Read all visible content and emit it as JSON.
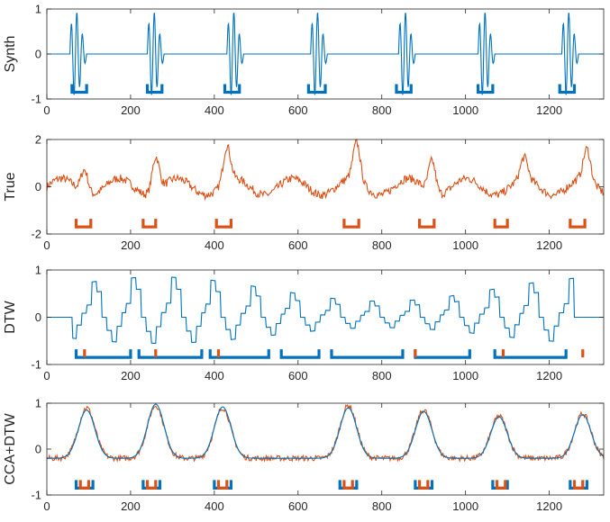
{
  "colors": {
    "blue": "#0072BD",
    "orange": "#D95319",
    "axis": "#262626"
  },
  "chart_data": [
    {
      "type": "line",
      "ylabel": "Synth",
      "xlim": [
        0,
        1330
      ],
      "ylim": [
        -1,
        1
      ],
      "xticks": [
        0,
        200,
        400,
        600,
        800,
        1000,
        1200
      ],
      "yticks": [
        -1,
        0,
        1
      ],
      "grid": false,
      "series": [
        {
          "color": "#0072BD",
          "kind": "synth_bursts",
          "bursts": [
            [
              55,
              95
            ],
            [
              240,
              280
            ],
            [
              430,
              470
            ],
            [
              630,
              670
            ],
            [
              840,
              880
            ],
            [
              1030,
              1070
            ],
            [
              1230,
              1270
            ]
          ]
        }
      ],
      "segments": [
        {
          "color": "#0072BD",
          "y": -0.85,
          "spans": [
            [
              60,
              95
            ],
            [
              240,
              275
            ],
            [
              425,
              460
            ],
            [
              625,
              665
            ],
            [
              835,
              870
            ],
            [
              1030,
              1065
            ],
            [
              1225,
              1260
            ]
          ]
        }
      ]
    },
    {
      "type": "line",
      "ylabel": "True",
      "xlim": [
        0,
        1330
      ],
      "ylim": [
        -2,
        2
      ],
      "xticks": [
        0,
        200,
        400,
        600,
        800,
        1000,
        1200
      ],
      "yticks": [
        -2,
        0,
        2
      ],
      "grid": false,
      "series": [
        {
          "color": "#D95319",
          "kind": "noisy_oscillation",
          "peaks": [
            [
              90,
              1.0
            ],
            [
              260,
              1.5
            ],
            [
              430,
              1.5
            ],
            [
              740,
              1.6
            ],
            [
              920,
              1.4
            ],
            [
              1140,
              0.9
            ],
            [
              1290,
              1.3
            ]
          ]
        }
      ],
      "segments": [
        {
          "color": "#D95319",
          "y": -1.7,
          "spans": [
            [
              70,
              105
            ],
            [
              230,
              260
            ],
            [
              405,
              440
            ],
            [
              710,
              745
            ],
            [
              890,
              925
            ],
            [
              1070,
              1100
            ],
            [
              1250,
              1285
            ]
          ]
        }
      ]
    },
    {
      "type": "line",
      "ylabel": "DTW",
      "xlim": [
        0,
        1330
      ],
      "ylim": [
        -1,
        1
      ],
      "xticks": [
        0,
        200,
        400,
        600,
        800,
        1000,
        1200
      ],
      "yticks": [
        -1,
        0,
        1
      ],
      "grid": false,
      "series": [
        {
          "color": "#0072BD",
          "kind": "warped_steps",
          "active": [
            [
              60,
              1260
            ]
          ]
        }
      ],
      "segments": [
        {
          "color": "#0072BD",
          "y": -0.85,
          "spans": [
            [
              70,
              200
            ],
            [
              220,
              370
            ],
            [
              390,
              530
            ],
            [
              560,
              650
            ],
            [
              680,
              850
            ],
            [
              880,
              1010
            ],
            [
              1070,
              1240
            ]
          ],
          "end_ticks": [
            1070,
            1110,
            1240,
            1260
          ]
        },
        {
          "color": "#D95319",
          "y": -0.85,
          "spans": [
            [
              90,
              90
            ],
            [
              260,
              260
            ],
            [
              410,
              410
            ],
            [
              880,
              880
            ],
            [
              1090,
              1090
            ],
            [
              1280,
              1280
            ]
          ]
        }
      ]
    },
    {
      "type": "line",
      "ylabel": "CCA+DTW",
      "xlim": [
        0,
        1330
      ],
      "ylim": [
        -1,
        1
      ],
      "xticks": [
        0,
        200,
        400,
        600,
        800,
        1000,
        1200
      ],
      "yticks": [
        -1,
        0,
        1
      ],
      "grid": false,
      "series": [
        {
          "color": "#D95319",
          "kind": "smooth_humps_noisy",
          "humps": [
            [
              95,
              0.9
            ],
            [
              260,
              0.95
            ],
            [
              420,
              0.9
            ],
            [
              720,
              0.95
            ],
            [
              900,
              0.85
            ],
            [
              1080,
              0.72
            ],
            [
              1280,
              0.77
            ]
          ]
        },
        {
          "color": "#0072BD",
          "kind": "smooth_humps",
          "humps": [
            [
              95,
              0.85
            ],
            [
              260,
              0.98
            ],
            [
              420,
              0.92
            ],
            [
              720,
              0.9
            ],
            [
              900,
              0.82
            ],
            [
              1080,
              0.7
            ],
            [
              1280,
              0.75
            ]
          ]
        }
      ],
      "segments": [
        {
          "color": "#0072BD",
          "y": -0.85,
          "spans": [
            [
              70,
              110
            ],
            [
              230,
              270
            ],
            [
              400,
              440
            ],
            [
              700,
              740
            ],
            [
              880,
              920
            ],
            [
              1065,
              1100
            ],
            [
              1250,
              1290
            ]
          ]
        },
        {
          "color": "#D95319",
          "y": -0.85,
          "spans": [
            [
              80,
              100
            ],
            [
              240,
              260
            ],
            [
              410,
              430
            ],
            [
              710,
              730
            ],
            [
              890,
              910
            ],
            [
              1075,
              1095
            ],
            [
              1260,
              1280
            ]
          ]
        }
      ]
    }
  ]
}
